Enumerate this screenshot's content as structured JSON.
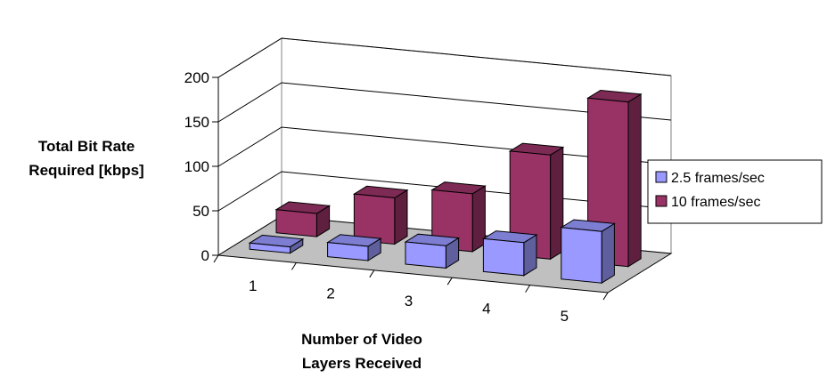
{
  "chart_data": {
    "type": "bar",
    "subtype": "3d-clustered-column",
    "categories": [
      "1",
      "2",
      "3",
      "4",
      "5"
    ],
    "series": [
      {
        "name": "2.5 frames/sec",
        "color": "#9999ff",
        "values": [
          7,
          16,
          25,
          37,
          58
        ]
      },
      {
        "name": "10 frames/sec",
        "color": "#993366",
        "values": [
          26,
          52,
          65,
          117,
          185
        ]
      }
    ],
    "title": "",
    "ylabel_lines": [
      "Total Bit  Rate",
      "Required [kbps]"
    ],
    "xlabel_lines": [
      "Number of Video",
      "Layers Received"
    ],
    "yticks": [
      "0",
      "50",
      "100",
      "150",
      "200"
    ],
    "ylim": [
      0,
      200
    ],
    "grid": true,
    "legend_position": "right"
  }
}
